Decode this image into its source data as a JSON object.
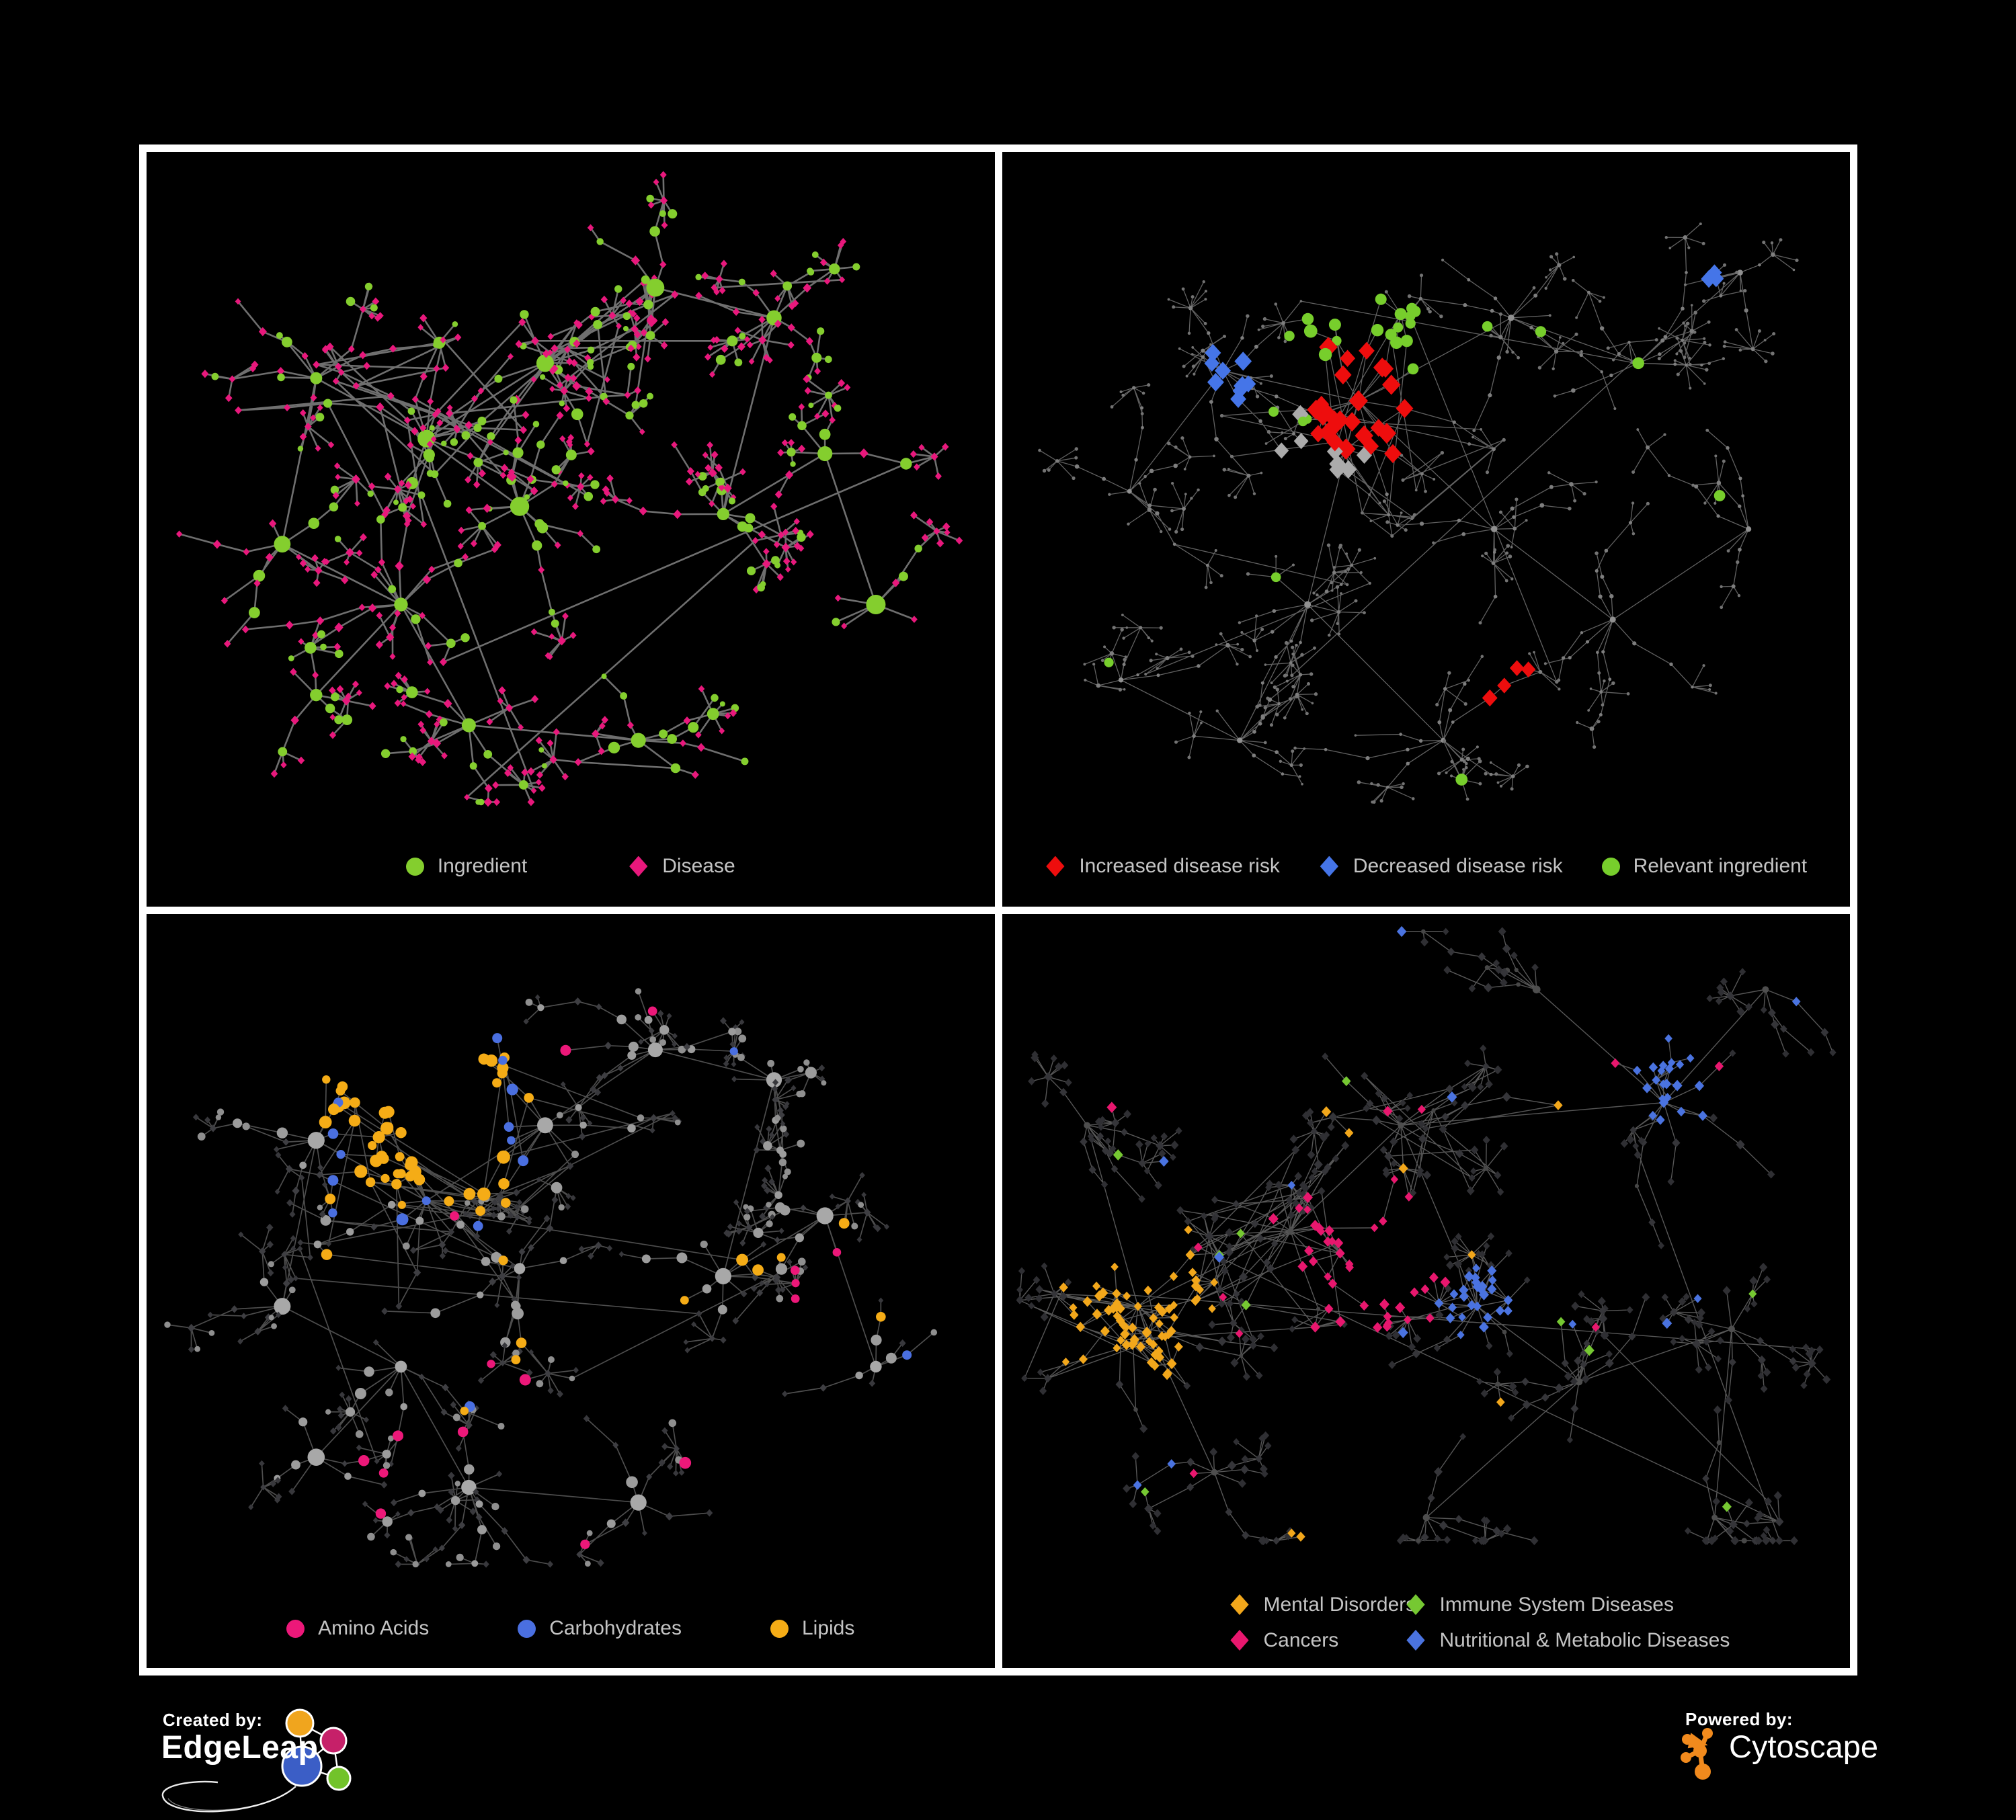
{
  "page": {
    "background": "#000000",
    "panel_border_color": "#ffffff",
    "legend_text_color": "#c4c4c4"
  },
  "panels": [
    {
      "id": "ingredient-disease-network",
      "legend": {
        "items": [
          {
            "label": "Ingredient",
            "shape": "circle",
            "color": "#84ce2e"
          },
          {
            "label": "Disease",
            "shape": "diamond",
            "color": "#e8187c"
          }
        ]
      },
      "network": {
        "seed": 7,
        "edge_color": "#757575",
        "edge_width": 2.6,
        "edge_opacity": 0.95,
        "branch_base": 9,
        "fan_prob": 0.5,
        "bottom_margin": 155,
        "clusters": [
          [
            0.33,
            0.38,
            1.7
          ],
          [
            0.2,
            0.3,
            1.0
          ],
          [
            0.16,
            0.52,
            0.8
          ],
          [
            0.3,
            0.6,
            1.1
          ],
          [
            0.47,
            0.28,
            1.4
          ],
          [
            0.44,
            0.47,
            1.0
          ],
          [
            0.6,
            0.18,
            0.8
          ],
          [
            0.74,
            0.22,
            0.9
          ],
          [
            0.68,
            0.48,
            0.9
          ],
          [
            0.8,
            0.4,
            0.6
          ],
          [
            0.38,
            0.76,
            0.9
          ],
          [
            0.58,
            0.78,
            0.8
          ],
          [
            0.2,
            0.72,
            0.6
          ],
          [
            0.86,
            0.6,
            0.5
          ]
        ],
        "styles": {
          "hub": {
            "shape": "circle",
            "color": "#84ce2e",
            "r": [
              9,
              15
            ]
          },
          "inner": [
            {
              "p": 0.4,
              "shape": "circle",
              "color": "#84ce2e",
              "r": [
                5,
                9
              ]
            },
            {
              "p": 0.6,
              "shape": "diamond",
              "color": "#e8187c",
              "r": [
                5,
                7
              ]
            }
          ],
          "leaf": [
            {
              "p": 0.22,
              "shape": "circle",
              "color": "#84ce2e",
              "r": [
                4,
                7
              ]
            },
            {
              "p": 0.78,
              "shape": "diamond",
              "color": "#e8187c",
              "r": [
                4.5,
                6
              ]
            }
          ]
        },
        "highlights": []
      }
    },
    {
      "id": "disease-risk-network",
      "legend": {
        "items": [
          {
            "label": "Increased disease risk",
            "shape": "diamond",
            "color": "#ee0d0d"
          },
          {
            "label": "Decreased disease risk",
            "shape": "diamond",
            "color": "#4575e8"
          },
          {
            "label": "Relevant ingredient",
            "shape": "circle",
            "color": "#77ce2c"
          }
        ]
      },
      "network": {
        "seed": 21,
        "edge_color": "#6b6b6b",
        "edge_width": 1.3,
        "edge_opacity": 0.9,
        "branch_base": 10,
        "fan_prob": 0.58,
        "bottom_margin": 155,
        "clusters": [
          [
            0.42,
            0.33,
            1.6
          ],
          [
            0.26,
            0.29,
            1.1
          ],
          [
            0.15,
            0.45,
            0.7
          ],
          [
            0.6,
            0.22,
            0.9
          ],
          [
            0.36,
            0.6,
            0.9
          ],
          [
            0.58,
            0.5,
            0.9
          ],
          [
            0.75,
            0.28,
            0.8
          ],
          [
            0.87,
            0.16,
            0.6
          ],
          [
            0.52,
            0.78,
            0.8
          ],
          [
            0.28,
            0.78,
            0.7
          ],
          [
            0.72,
            0.62,
            0.8
          ],
          [
            0.88,
            0.5,
            0.5
          ],
          [
            0.14,
            0.7,
            0.5
          ]
        ],
        "styles": {
          "hub": {
            "shape": "circle",
            "color": "#909090",
            "r": [
              3.5,
              5
            ]
          },
          "inner": [
            {
              "p": 1.0,
              "shape": "circle",
              "color": "#7e7e7e",
              "r": [
                2.2,
                3.4
              ]
            }
          ],
          "leaf": [
            {
              "p": 1.0,
              "shape": "circle",
              "color": "#737373",
              "r": [
                1.8,
                2.8
              ]
            }
          ]
        },
        "highlights": [
          {
            "count": 26,
            "shape": "diamond",
            "color": "#ee0d0d",
            "r": [
              12,
              15
            ],
            "focus": [
              0.43,
              0.33
            ]
          },
          {
            "count": 4,
            "shape": "diamond",
            "color": "#ee0d0d",
            "r": [
              11,
              13
            ],
            "focus": [
              0.6,
              0.72
            ]
          },
          {
            "count": 9,
            "shape": "diamond",
            "color": "#4575e8",
            "r": [
              11,
              14
            ],
            "focus": [
              0.26,
              0.3
            ]
          },
          {
            "count": 3,
            "shape": "diamond",
            "color": "#4575e8",
            "r": [
              11,
              13
            ],
            "focus": [
              0.83,
              0.17
            ]
          },
          {
            "count": 8,
            "shape": "diamond",
            "color": "#ababab",
            "r": [
              11,
              13
            ],
            "focus": [
              0.4,
              0.4
            ]
          },
          {
            "count": 20,
            "shape": "circle",
            "color": "#77ce2c",
            "r": [
              7,
              10
            ],
            "focus": [
              0.43,
              0.3
            ]
          },
          {
            "count": 8,
            "shape": "circle",
            "color": "#77ce2c",
            "r": [
              7,
              9
            ],
            "focus": null
          }
        ]
      }
    },
    {
      "id": "nutrient-class-network",
      "legend": {
        "items": [
          {
            "label": "Amino Acids",
            "shape": "circle",
            "color": "#ec1879"
          },
          {
            "label": "Carbohydrates",
            "shape": "circle",
            "color": "#4a6fe0"
          },
          {
            "label": "Lipids",
            "shape": "circle",
            "color": "#f5ac16"
          }
        ]
      },
      "network": {
        "seed": 5,
        "edge_color": "#9a9a9a",
        "edge_width": 1.7,
        "edge_opacity": 0.5,
        "branch_base": 9,
        "fan_prob": 0.5,
        "bottom_margin": 155,
        "clusters": [
          [
            0.33,
            0.38,
            1.7
          ],
          [
            0.2,
            0.3,
            1.0
          ],
          [
            0.16,
            0.52,
            0.8
          ],
          [
            0.3,
            0.6,
            1.1
          ],
          [
            0.47,
            0.28,
            1.4
          ],
          [
            0.44,
            0.47,
            1.0
          ],
          [
            0.6,
            0.18,
            0.8
          ],
          [
            0.74,
            0.22,
            0.9
          ],
          [
            0.68,
            0.48,
            0.9
          ],
          [
            0.8,
            0.4,
            0.6
          ],
          [
            0.38,
            0.76,
            0.9
          ],
          [
            0.58,
            0.78,
            0.8
          ],
          [
            0.2,
            0.72,
            0.6
          ],
          [
            0.86,
            0.6,
            0.5
          ]
        ],
        "styles": {
          "hub": {
            "shape": "circle",
            "color": "#a8a8a8",
            "r": [
              8,
              13
            ]
          },
          "inner": [
            {
              "p": 0.45,
              "shape": "circle",
              "color": "#9c9c9c",
              "r": [
                5,
                9
              ]
            },
            {
              "p": 0.55,
              "shape": "diamond",
              "color": "#3e3e42",
              "r": [
                4.5,
                6
              ]
            }
          ],
          "leaf": [
            {
              "p": 0.25,
              "shape": "circle",
              "color": "#8f8f8f",
              "r": [
                4,
                6
              ]
            },
            {
              "p": 0.75,
              "shape": "diamond",
              "color": "#38383c",
              "r": [
                4,
                5.5
              ]
            }
          ]
        },
        "highlights": [
          {
            "count": 42,
            "shape": "circle",
            "color": "#f5ac16",
            "r": [
              6,
              10
            ],
            "focus": [
              0.33,
              0.26
            ]
          },
          {
            "count": 16,
            "shape": "circle",
            "color": "#f5ac16",
            "r": [
              6,
              9
            ],
            "focus": null
          },
          {
            "count": 12,
            "shape": "circle",
            "color": "#4a6fe0",
            "r": [
              6,
              9
            ],
            "focus": [
              0.31,
              0.23
            ]
          },
          {
            "count": 5,
            "shape": "circle",
            "color": "#4a6fe0",
            "r": [
              6,
              8
            ],
            "focus": null
          },
          {
            "count": 16,
            "shape": "circle",
            "color": "#ec1879",
            "r": [
              6,
              9
            ],
            "focus": null
          }
        ]
      }
    },
    {
      "id": "disease-class-network",
      "legend_columns": 2,
      "legend": {
        "items": [
          {
            "label": "Mental Disorders",
            "shape": "diamond",
            "color": "#f2a71b"
          },
          {
            "label": "Immune System Diseases",
            "shape": "diamond",
            "color": "#76c832"
          },
          {
            "label": "Cancers",
            "shape": "diamond",
            "color": "#e8176e"
          },
          {
            "label": "Nutritional & Metabolic Diseases",
            "shape": "diamond",
            "color": "#4a73e0"
          }
        ]
      },
      "network": {
        "seed": 42,
        "edge_color": "#606060",
        "edge_width": 1.4,
        "edge_opacity": 0.9,
        "branch_base": 11,
        "fan_prob": 0.55,
        "bottom_margin": 190,
        "clusters": [
          [
            0.16,
            0.52,
            1.3
          ],
          [
            0.34,
            0.42,
            1.4
          ],
          [
            0.47,
            0.28,
            1.2
          ],
          [
            0.56,
            0.52,
            1.0
          ],
          [
            0.78,
            0.25,
            0.9
          ],
          [
            0.68,
            0.62,
            0.8
          ],
          [
            0.25,
            0.74,
            0.8
          ],
          [
            0.5,
            0.8,
            0.7
          ],
          [
            0.86,
            0.55,
            0.6
          ],
          [
            0.63,
            0.1,
            0.7
          ],
          [
            0.1,
            0.28,
            0.6
          ],
          [
            0.84,
            0.8,
            0.6
          ],
          [
            0.9,
            0.1,
            0.5
          ]
        ],
        "styles": {
          "hub": {
            "shape": "circle",
            "color": "#4e4e4e",
            "r": [
              4,
              6
            ]
          },
          "inner": [
            {
              "p": 0.9,
              "shape": "diamond",
              "color": "#353539",
              "r": [
                5.5,
                7
              ]
            },
            {
              "p": 0.1,
              "shape": "circle",
              "color": "#474747",
              "r": [
                3,
                4.5
              ]
            }
          ],
          "leaf": [
            {
              "p": 1.0,
              "shape": "diamond",
              "color": "#2f2f33",
              "r": [
                5,
                6.5
              ]
            }
          ]
        },
        "highlights": [
          {
            "count": 68,
            "shape": "diamond",
            "color": "#f2a71b",
            "r": [
              6,
              8
            ],
            "focus": [
              0.16,
              0.52
            ]
          },
          {
            "count": 10,
            "shape": "diamond",
            "color": "#f2a71b",
            "r": [
              6,
              8
            ],
            "focus": null
          },
          {
            "count": 38,
            "shape": "diamond",
            "color": "#e8176e",
            "r": [
              6,
              8
            ],
            "focus": [
              0.43,
              0.46
            ]
          },
          {
            "count": 12,
            "shape": "diamond",
            "color": "#e8176e",
            "r": [
              6,
              8
            ],
            "focus": null
          },
          {
            "count": 26,
            "shape": "diamond",
            "color": "#4a73e0",
            "r": [
              6,
              8
            ],
            "focus": [
              0.56,
              0.52
            ]
          },
          {
            "count": 22,
            "shape": "diamond",
            "color": "#4a73e0",
            "r": [
              6,
              8
            ],
            "focus": [
              0.8,
              0.22
            ]
          },
          {
            "count": 12,
            "shape": "diamond",
            "color": "#4a73e0",
            "r": [
              6,
              8
            ],
            "focus": null
          },
          {
            "count": 10,
            "shape": "diamond",
            "color": "#76c832",
            "r": [
              6,
              8
            ],
            "focus": null
          }
        ]
      }
    }
  ],
  "footer": {
    "created_by_label": "Created by:",
    "created_by_name": "EdgeLeap",
    "powered_by_label": "Powered by:",
    "powered_by_name": "Cytoscape",
    "cytoscape_color": "#f18a1d",
    "edgeleap_logo": {
      "orange": "#f0a51e",
      "pink": "#c62069",
      "blue": "#3b5ec6",
      "green": "#72c32a"
    }
  }
}
